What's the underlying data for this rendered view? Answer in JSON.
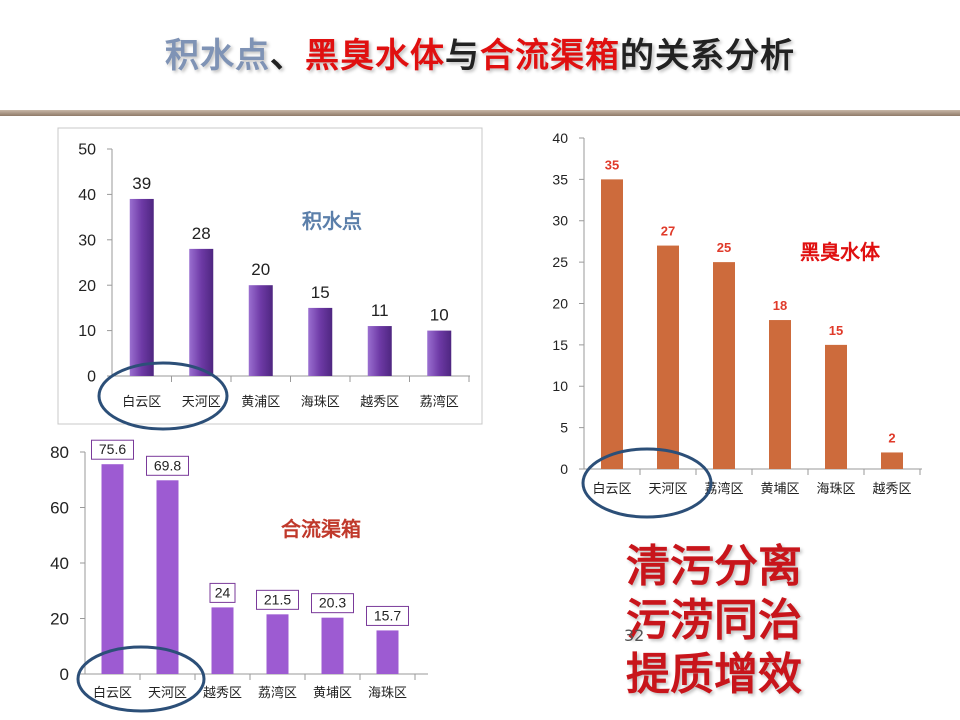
{
  "title": {
    "part1": "积水点",
    "sep1": "、",
    "part2": "黑臭水体",
    "sep2": "与",
    "part3": "合流渠箱",
    "part4": "的关系分析"
  },
  "colors": {
    "title_blue": "#7f93b5",
    "title_red": "#e01010",
    "title_dark": "#222222",
    "chart1_bar": "#7b46b0",
    "chart2_bar": "#cd6b3c",
    "chart3_bar": "#9d5bd2",
    "circle": "#2c4f78",
    "slogan": "#c8151b"
  },
  "chart_data": [
    {
      "type": "bar",
      "title": "积水点",
      "categories": [
        "白云区",
        "天河区",
        "黄浦区",
        "海珠区",
        "越秀区",
        "荔湾区"
      ],
      "values": [
        39,
        28,
        20,
        15,
        11,
        10
      ],
      "ylim": [
        0,
        50
      ],
      "yticks": [
        "0",
        "10",
        "20",
        "30",
        "40",
        "50"
      ],
      "grid": false,
      "highlight": "白云区、天河区 (circled)"
    },
    {
      "type": "bar",
      "title": "黑臭水体",
      "categories": [
        "白云区",
        "天河区",
        "荔湾区",
        "黄埔区",
        "海珠区",
        "越秀区"
      ],
      "values": [
        35,
        27,
        25,
        18,
        15,
        2
      ],
      "ylim": [
        0,
        40
      ],
      "yticks": [
        "0",
        "5",
        "10",
        "15",
        "20",
        "25",
        "30",
        "35",
        "40"
      ],
      "grid": false,
      "highlight": "白云区、天河区 (circled)"
    },
    {
      "type": "bar",
      "title": "合流渠箱",
      "categories": [
        "白云区",
        "天河区",
        "越秀区",
        "荔湾区",
        "黄埔区",
        "海珠区"
      ],
      "values": [
        75.6,
        69.8,
        24,
        21.5,
        20.3,
        15.7
      ],
      "ylim": [
        0,
        80
      ],
      "yticks": [
        "0",
        "20",
        "40",
        "60",
        "80"
      ],
      "grid": false,
      "highlight": "白云区、天河区 (circled)"
    }
  ],
  "slogan": [
    "清污分离",
    "污涝同治",
    "提质增效"
  ],
  "page_number": "32"
}
